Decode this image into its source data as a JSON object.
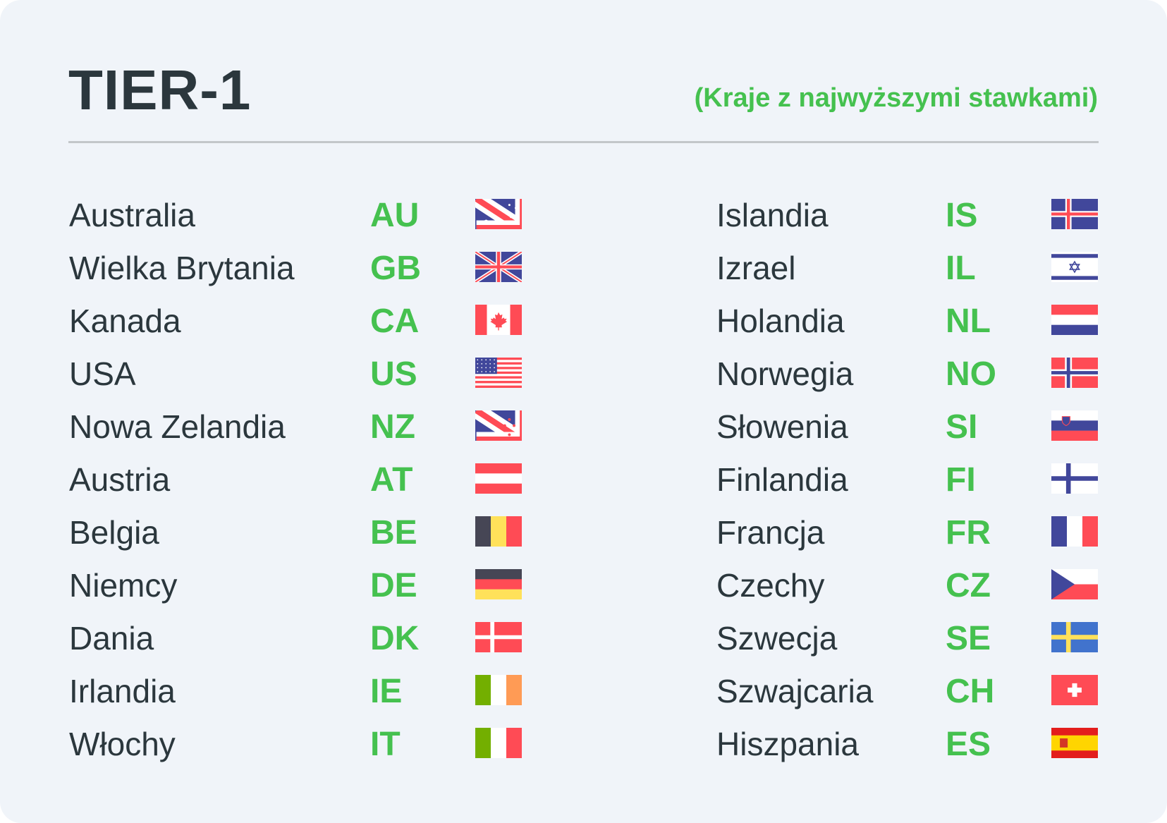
{
  "header": {
    "title": "TIER-1",
    "subtitle": "(Kraje z najwyższymi stawkami)"
  },
  "colors": {
    "text": "#2b373d",
    "accent_green": "#45c14f",
    "background": "#f0f4f9",
    "flag_blue": "#41479b",
    "flag_red": "#ff4b55"
  },
  "left_column": [
    {
      "name": "Australia",
      "code": "AU"
    },
    {
      "name": "Wielka Brytania",
      "code": "GB"
    },
    {
      "name": "Kanada",
      "code": "CA"
    },
    {
      "name": "USA",
      "code": "US"
    },
    {
      "name": "Nowa Zelandia",
      "code": "NZ"
    },
    {
      "name": "Austria",
      "code": "AT"
    },
    {
      "name": "Belgia",
      "code": "BE"
    },
    {
      "name": "Niemcy",
      "code": "DE"
    },
    {
      "name": "Dania",
      "code": "DK"
    },
    {
      "name": "Irlandia",
      "code": "IE"
    },
    {
      "name": "Włochy",
      "code": "IT"
    }
  ],
  "right_column": [
    {
      "name": "Islandia",
      "code": "IS"
    },
    {
      "name": "Izrael",
      "code": "IL"
    },
    {
      "name": "Holandia",
      "code": "NL"
    },
    {
      "name": "Norwegia",
      "code": "NO"
    },
    {
      "name": "Słowenia",
      "code": "SI"
    },
    {
      "name": "Finlandia",
      "code": "FI"
    },
    {
      "name": "Francja",
      "code": "FR"
    },
    {
      "name": "Czechy",
      "code": "CZ"
    },
    {
      "name": "Szwecja",
      "code": "SE"
    },
    {
      "name": "Szwajcaria",
      "code": "CH"
    },
    {
      "name": "Hiszpania",
      "code": "ES"
    }
  ]
}
